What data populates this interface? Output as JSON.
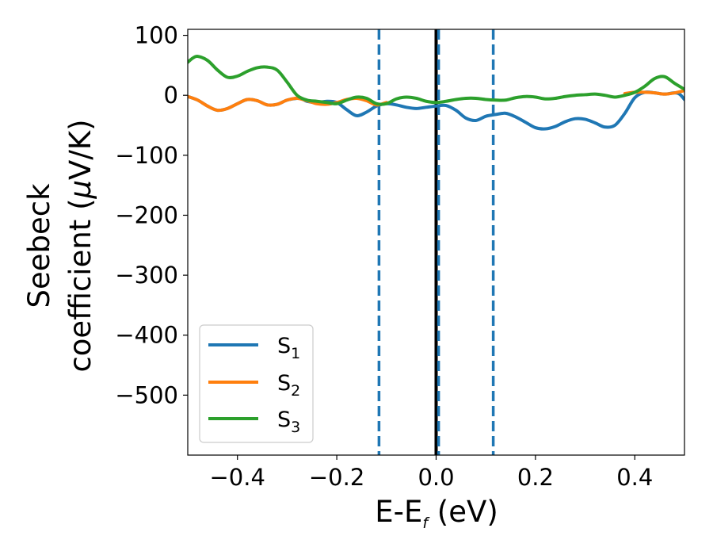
{
  "chart_data": {
    "type": "line",
    "title": "",
    "xlabel": {
      "main": "E-E",
      "sub": "f",
      "unit": " (eV)"
    },
    "ylabel": {
      "line1": "Seebeck",
      "line2_prefix": "coefficient  (",
      "mu": "μ",
      "line2_suffix": "V/K)"
    },
    "xlim": [
      -0.5,
      0.5
    ],
    "ylim": [
      -600,
      110
    ],
    "xticks": [
      {
        "value": -0.4,
        "label": "−0.4"
      },
      {
        "value": -0.2,
        "label": "−0.2"
      },
      {
        "value": 0.0,
        "label": "0.0"
      },
      {
        "value": 0.2,
        "label": "0.2"
      },
      {
        "value": 0.4,
        "label": "0.4"
      }
    ],
    "yticks": [
      {
        "value": 100,
        "label": "100"
      },
      {
        "value": 0,
        "label": "0"
      },
      {
        "value": -100,
        "label": "−100"
      },
      {
        "value": -200,
        "label": "−200"
      },
      {
        "value": -300,
        "label": "−300"
      },
      {
        "value": -400,
        "label": "−400"
      },
      {
        "value": -500,
        "label": "−500"
      }
    ],
    "legend": {
      "placement": "lower-left"
    },
    "series": [
      {
        "name": "S",
        "name_sub": "1",
        "color": "#1f77b4",
        "points": [
          [
            -0.5,
            -2
          ],
          [
            -0.48,
            -8
          ],
          [
            -0.46,
            -18
          ],
          [
            -0.44,
            -25
          ],
          [
            -0.42,
            -22
          ],
          [
            -0.4,
            -14
          ],
          [
            -0.38,
            -7
          ],
          [
            -0.36,
            -9
          ],
          [
            -0.34,
            -16
          ],
          [
            -0.32,
            -15
          ],
          [
            -0.3,
            -8
          ],
          [
            -0.28,
            -5
          ],
          [
            -0.27,
            -6
          ],
          [
            -0.26,
            -10
          ],
          [
            -0.24,
            -12
          ],
          [
            -0.22,
            -10
          ],
          [
            -0.2,
            -12
          ],
          [
            -0.18,
            -24
          ],
          [
            -0.16,
            -34
          ],
          [
            -0.14,
            -28
          ],
          [
            -0.12,
            -18
          ],
          [
            -0.1,
            -14
          ],
          [
            -0.08,
            -16
          ],
          [
            -0.06,
            -20
          ],
          [
            -0.04,
            -22
          ],
          [
            -0.02,
            -20
          ],
          [
            0.0,
            -18
          ],
          [
            0.02,
            -17
          ],
          [
            0.04,
            -25
          ],
          [
            0.06,
            -38
          ],
          [
            0.08,
            -42
          ],
          [
            0.1,
            -35
          ],
          [
            0.12,
            -32
          ],
          [
            0.14,
            -30
          ],
          [
            0.16,
            -36
          ],
          [
            0.18,
            -45
          ],
          [
            0.2,
            -54
          ],
          [
            0.22,
            -56
          ],
          [
            0.24,
            -52
          ],
          [
            0.26,
            -44
          ],
          [
            0.28,
            -39
          ],
          [
            0.3,
            -40
          ],
          [
            0.32,
            -46
          ],
          [
            0.34,
            -53
          ],
          [
            0.36,
            -50
          ],
          [
            0.38,
            -30
          ],
          [
            0.4,
            -4
          ],
          [
            0.42,
            5
          ],
          [
            0.44,
            4
          ],
          [
            0.46,
            2
          ],
          [
            0.48,
            4
          ],
          [
            0.49,
            2
          ],
          [
            0.5,
            -7
          ]
        ]
      },
      {
        "name": "S",
        "name_sub": "2",
        "color": "#ff7f0e",
        "points": [
          [
            -0.5,
            -2
          ],
          [
            -0.48,
            -8
          ],
          [
            -0.46,
            -18
          ],
          [
            -0.44,
            -25
          ],
          [
            -0.42,
            -22
          ],
          [
            -0.4,
            -14
          ],
          [
            -0.38,
            -7
          ],
          [
            -0.36,
            -9
          ],
          [
            -0.34,
            -16
          ],
          [
            -0.32,
            -15
          ],
          [
            -0.3,
            -8
          ],
          [
            -0.28,
            -5
          ],
          [
            -0.26,
            -9
          ],
          [
            -0.24,
            -14
          ],
          [
            -0.22,
            -15
          ],
          [
            -0.2,
            -12
          ],
          [
            -0.18,
            -7
          ],
          [
            -0.16,
            -5
          ],
          [
            -0.14,
            -9
          ],
          [
            -0.12,
            -16
          ],
          [
            -0.1,
            -12
          ],
          [
            0.38,
            3
          ],
          [
            0.4,
            5
          ],
          [
            0.42,
            5
          ],
          [
            0.44,
            4
          ],
          [
            0.46,
            2
          ],
          [
            0.48,
            4
          ],
          [
            0.5,
            8
          ]
        ]
      },
      {
        "name": "S",
        "name_sub": "3",
        "color": "#2ca02c",
        "points": [
          [
            -0.5,
            55
          ],
          [
            -0.49,
            62
          ],
          [
            -0.48,
            65
          ],
          [
            -0.46,
            58
          ],
          [
            -0.44,
            42
          ],
          [
            -0.42,
            30
          ],
          [
            -0.4,
            32
          ],
          [
            -0.38,
            40
          ],
          [
            -0.36,
            46
          ],
          [
            -0.34,
            47
          ],
          [
            -0.32,
            42
          ],
          [
            -0.3,
            22
          ],
          [
            -0.28,
            0
          ],
          [
            -0.26,
            -8
          ],
          [
            -0.24,
            -10
          ],
          [
            -0.22,
            -12
          ],
          [
            -0.2,
            -14
          ],
          [
            -0.18,
            -8
          ],
          [
            -0.16,
            -3
          ],
          [
            -0.14,
            -5
          ],
          [
            -0.12,
            -14
          ],
          [
            -0.1,
            -14
          ],
          [
            -0.08,
            -6
          ],
          [
            -0.06,
            -3
          ],
          [
            -0.04,
            -5
          ],
          [
            -0.02,
            -10
          ],
          [
            0.0,
            -12
          ],
          [
            0.02,
            -10
          ],
          [
            0.04,
            -7
          ],
          [
            0.06,
            -5
          ],
          [
            0.08,
            -5
          ],
          [
            0.1,
            -7
          ],
          [
            0.12,
            -8
          ],
          [
            0.14,
            -8
          ],
          [
            0.16,
            -4
          ],
          [
            0.18,
            -2
          ],
          [
            0.2,
            -3
          ],
          [
            0.22,
            -6
          ],
          [
            0.24,
            -5
          ],
          [
            0.26,
            -2
          ],
          [
            0.28,
            0
          ],
          [
            0.3,
            1
          ],
          [
            0.32,
            2
          ],
          [
            0.34,
            0
          ],
          [
            0.36,
            -3
          ],
          [
            0.38,
            0
          ],
          [
            0.4,
            5
          ],
          [
            0.42,
            15
          ],
          [
            0.44,
            28
          ],
          [
            0.46,
            31
          ],
          [
            0.48,
            20
          ],
          [
            0.5,
            10
          ]
        ]
      }
    ],
    "reference_lines": [
      {
        "x": 0.0,
        "color": "#000000",
        "style": "solid"
      },
      {
        "x": -0.115,
        "color": "#1f77b4",
        "style": "dashed"
      },
      {
        "x": 0.005,
        "color": "#1f77b4",
        "style": "dashed"
      },
      {
        "x": 0.115,
        "color": "#1f77b4",
        "style": "dashed"
      }
    ]
  }
}
